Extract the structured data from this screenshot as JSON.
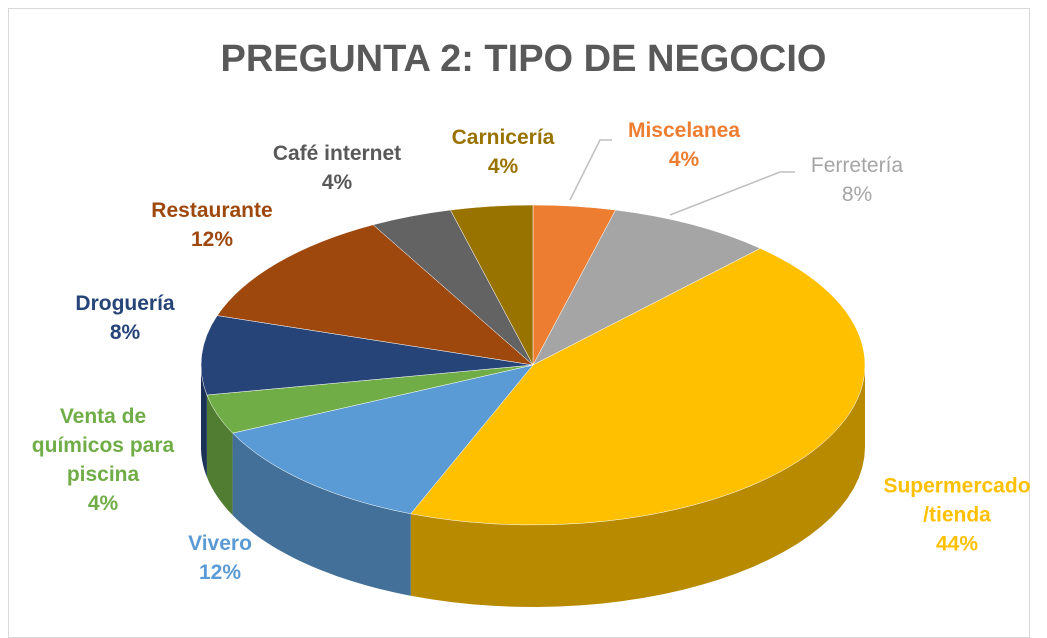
{
  "chart_data": {
    "type": "pie3d",
    "title": "PREGUNTA 2: TIPO DE NEGOCIO",
    "categories": [
      "Miscelanea",
      "Ferretería",
      "Supermercado /tienda",
      "Vivero",
      "Venta de químicos para piscina",
      "Droguería",
      "Restaurante",
      "Café internet",
      "Carnicería"
    ],
    "values": [
      4,
      8,
      44,
      12,
      4,
      8,
      12,
      4,
      4
    ],
    "value_labels": [
      "4%",
      "8%",
      "44%",
      "12%",
      "4%",
      "8%",
      "12%",
      "4%",
      "4%"
    ],
    "colors": [
      "#ED7D31",
      "#A5A5A5",
      "#FFC000",
      "#5B9BD5",
      "#70AD47",
      "#264478",
      "#9E480E",
      "#636363",
      "#997300"
    ]
  }
}
